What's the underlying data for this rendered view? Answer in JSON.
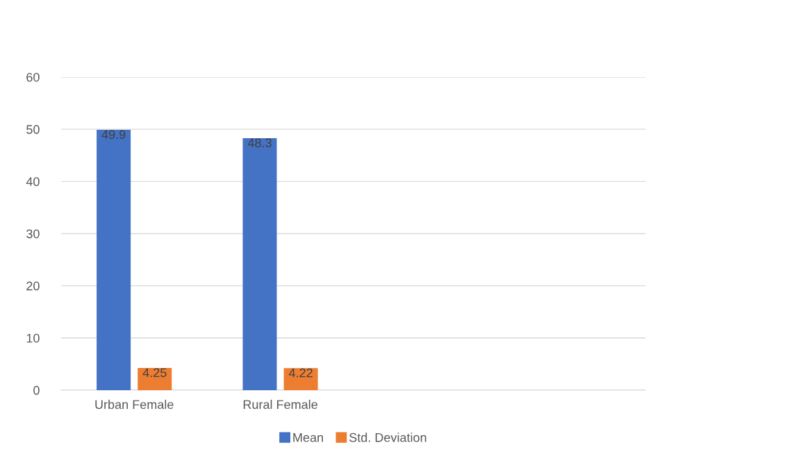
{
  "chart_data": {
    "type": "bar",
    "categories": [
      "Urban Female",
      "Rural Female",
      null,
      null
    ],
    "series": [
      {
        "name": "Mean",
        "color": "#4472c4",
        "values": [
          49.9,
          48.3,
          null,
          null
        ]
      },
      {
        "name": "Std. Deviation",
        "color": "#ed7d31",
        "values": [
          4.25,
          4.22,
          null,
          null
        ]
      }
    ],
    "ylim": [
      0,
      60
    ],
    "yticks": [
      0,
      10,
      20,
      30,
      40,
      50,
      60
    ],
    "grid": "y",
    "legend": "bottom",
    "data_labels": true
  }
}
